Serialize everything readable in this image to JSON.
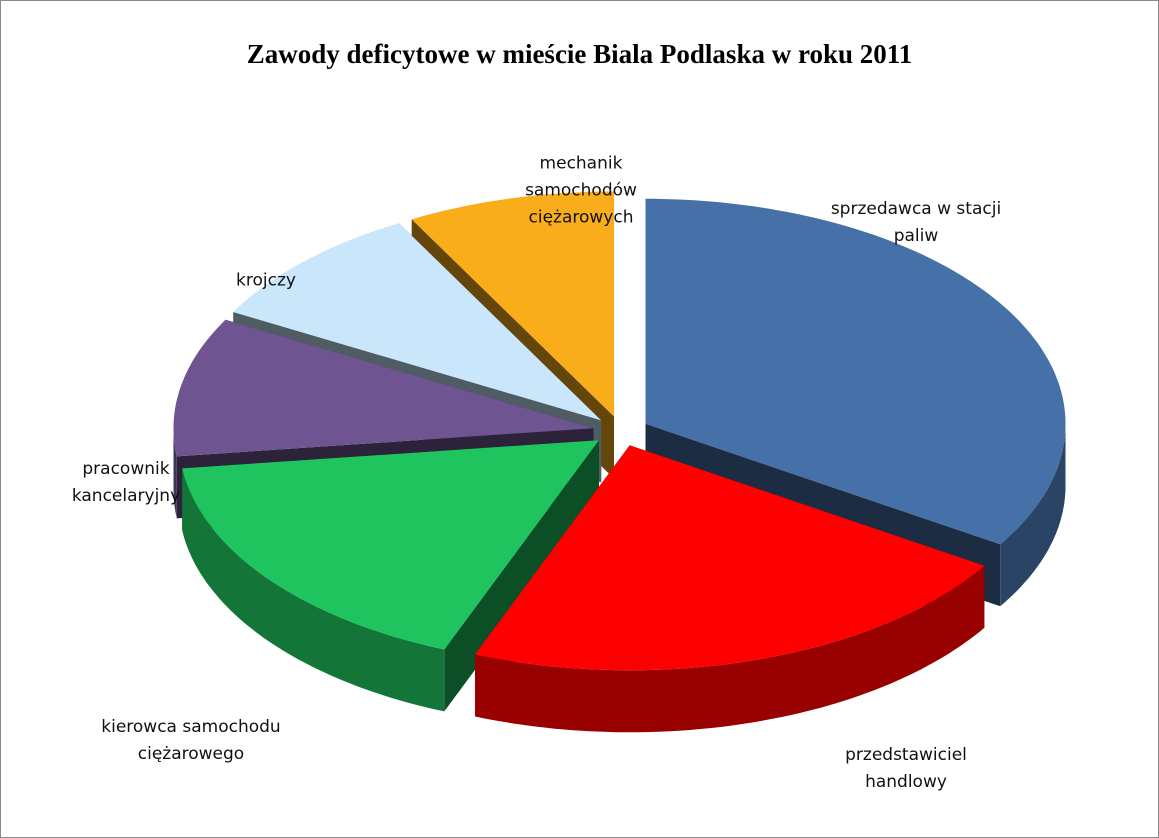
{
  "chart_data": {
    "type": "pie3d",
    "title": "Zawody deficytowe w mieście Biala Podlaska w roku 2011",
    "categories": [
      "sprzedawca w stacji paliw",
      "przedstawiciel handlowy",
      "kierowca samochodu ciężarowego",
      "pracownik kancelaryjny",
      "krojczy",
      "mechanik samochodów ciężarowych"
    ],
    "values": [
      34,
      22,
      17,
      10,
      9,
      8
    ],
    "colors": [
      "#4571a8",
      "#ff0000",
      "#1fc45e",
      "#6e5591",
      "#c9e6fa",
      "#f9ad1a"
    ]
  }
}
